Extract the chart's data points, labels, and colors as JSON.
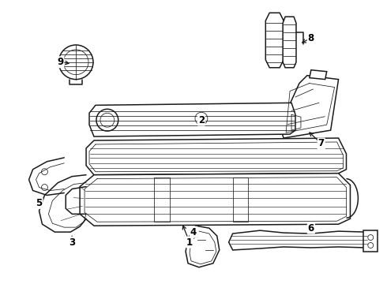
{
  "background_color": "#ffffff",
  "line_color": "#1a1a1a",
  "label_color": "#000000",
  "fig_width": 4.9,
  "fig_height": 3.6,
  "dpi": 100,
  "label_fontsize": 8.5,
  "lw_main": 1.1,
  "lw_thin": 0.55,
  "lw_thick": 1.5
}
